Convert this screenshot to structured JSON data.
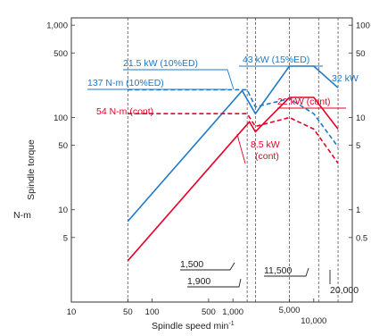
{
  "chart_data": {
    "type": "line",
    "title": "",
    "xlabel": "Spindle speed min",
    "xlabel_sup": "-1",
    "ylabel": "Spindle torque",
    "ylabel_unit": "N-m",
    "x_scale": "log",
    "y_scale": "log",
    "xlim": [
      10,
      30000
    ],
    "ylim": [
      1,
      1200
    ],
    "grid": false,
    "colors": {
      "power": "#1f78c8",
      "torque_high": "#1f78c8",
      "cont": "#e60026",
      "guide": "#555555"
    },
    "x_ticks": [
      {
        "value": 10,
        "label": "10"
      },
      {
        "value": 50,
        "label": "50"
      },
      {
        "value": 100,
        "label": "100"
      },
      {
        "value": 500,
        "label": "500"
      },
      {
        "value": 1000,
        "label": "1,000"
      },
      {
        "value": 5000,
        "label": "5,000"
      },
      {
        "value": 10000,
        "label": "10,000"
      }
    ],
    "y_ticks_left": [
      {
        "value": 5,
        "label": "5"
      },
      {
        "value": 10,
        "label": "10"
      },
      {
        "value": 50,
        "label": "50"
      },
      {
        "value": 100,
        "label": "100"
      },
      {
        "value": 500,
        "label": "500"
      },
      {
        "value": 1000,
        "label": "1,000"
      }
    ],
    "y_ticks_right": [
      {
        "value": 1000,
        "label": "100"
      },
      {
        "value": 500,
        "label": "50"
      },
      {
        "value": 100,
        "label": "10"
      },
      {
        "value": 50,
        "label": "5"
      },
      {
        "value": 10,
        "label": "1"
      },
      {
        "value": 5,
        "label": "0.5"
      }
    ],
    "series": [
      {
        "name": "21.5 kW (10%ED) / 43 kW (15%ED) / 32 kW",
        "color": "#1f78c8",
        "dash": false,
        "points": [
          [
            50,
            7.5
          ],
          [
            1300,
            195
          ],
          [
            1900,
            110
          ],
          [
            5000,
            360
          ],
          [
            10000,
            360
          ],
          [
            20000,
            210
          ]
        ]
      },
      {
        "name": "137 N-m (10%ED)",
        "color": "#1f78c8",
        "dash": true,
        "points": [
          [
            50,
            200
          ],
          [
            1500,
            200
          ],
          [
            1900,
            130
          ],
          [
            5000,
            160
          ],
          [
            10000,
            110
          ],
          [
            20000,
            48
          ]
        ]
      },
      {
        "name": "22 kW (cont) / 8.5 kW (cont)",
        "color": "#e60026",
        "dash": false,
        "points": [
          [
            50,
            2.8
          ],
          [
            1600,
            90
          ],
          [
            1900,
            70
          ],
          [
            5000,
            165
          ],
          [
            10000,
            165
          ],
          [
            20000,
            75
          ]
        ]
      },
      {
        "name": "54 N-m (cont)",
        "color": "#e60026",
        "dash": true,
        "points": [
          [
            50,
            110
          ],
          [
            1500,
            110
          ],
          [
            1900,
            80
          ],
          [
            5000,
            100
          ],
          [
            10000,
            75
          ],
          [
            20000,
            32
          ]
        ]
      }
    ],
    "guides": [
      {
        "x": 50
      },
      {
        "x": 1500
      },
      {
        "x": 1900
      },
      {
        "x": 5000
      },
      {
        "x": 11500
      },
      {
        "x": 20000
      }
    ],
    "annotations": [
      {
        "id": "a1",
        "text": "21.5 kW (10%ED)",
        "color": "#1f78c8"
      },
      {
        "id": "a2",
        "text": "137 N-m (10%ED)",
        "color": "#1f78c8"
      },
      {
        "id": "a3",
        "text": "43 kW (15%ED)",
        "color": "#1f78c8"
      },
      {
        "id": "a4",
        "text": "32 kW",
        "color": "#1f78c8"
      },
      {
        "id": "a5",
        "text": "22 kW (cont)",
        "color": "#e60026"
      },
      {
        "id": "a6",
        "text": "54 N-m (cont)",
        "color": "#e60026"
      },
      {
        "id": "a7",
        "text": "8.5 kW",
        "color": "#e60026"
      },
      {
        "id": "a8",
        "text": "(cont)",
        "color": "#e60026"
      },
      {
        "id": "s1",
        "text": "1,500",
        "color": "#222222"
      },
      {
        "id": "s2",
        "text": "1,900",
        "color": "#222222"
      },
      {
        "id": "s3",
        "text": "11,500",
        "color": "#222222"
      },
      {
        "id": "s4",
        "text": "20,000",
        "color": "#222222"
      }
    ]
  }
}
